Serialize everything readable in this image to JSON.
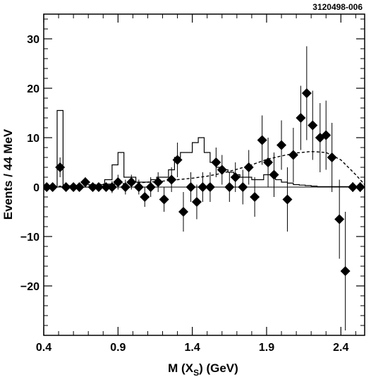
{
  "figure_id": "3120498-006",
  "chart_data": {
    "type": "scatter",
    "xlabel": "M (X",
    "xlabel_sub": "S",
    "xlabel_tail": ") (GeV)",
    "ylabel": "Events /  44  MeV",
    "xlim": [
      0.4,
      2.56
    ],
    "ylim": [
      -30,
      35
    ],
    "xticks": [
      0.4,
      0.9,
      1.4,
      1.9,
      2.4
    ],
    "xtick_labels": [
      "0.4",
      "0.9",
      "1.4",
      "1.9",
      "2.4"
    ],
    "yticks": [
      -20,
      -10,
      0,
      10,
      20,
      30
    ],
    "ytick_labels": [
      "−20",
      "−10",
      "0",
      "10",
      "20",
      "30"
    ],
    "grid": false,
    "series": [
      {
        "style": "markers-with-error-bars",
        "points": [
          {
            "x": 0.42,
            "y": 0.0,
            "err": 0.8
          },
          {
            "x": 0.46,
            "y": 0.0,
            "err": 0.8
          },
          {
            "x": 0.51,
            "y": 4.0,
            "err": 2.0
          },
          {
            "x": 0.55,
            "y": 0.0,
            "err": 0.8
          },
          {
            "x": 0.6,
            "y": 0.0,
            "err": 0.8
          },
          {
            "x": 0.64,
            "y": 0.0,
            "err": 0.8
          },
          {
            "x": 0.68,
            "y": 1.0,
            "err": 1.0
          },
          {
            "x": 0.73,
            "y": 0.0,
            "err": 0.8
          },
          {
            "x": 0.77,
            "y": 0.0,
            "err": 0.8
          },
          {
            "x": 0.82,
            "y": 0.0,
            "err": 0.8
          },
          {
            "x": 0.86,
            "y": 0.0,
            "err": 1.2
          },
          {
            "x": 0.9,
            "y": 1.0,
            "err": 1.5
          },
          {
            "x": 0.95,
            "y": 0.0,
            "err": 1.5
          },
          {
            "x": 0.99,
            "y": 1.0,
            "err": 1.5
          },
          {
            "x": 1.04,
            "y": 0.0,
            "err": 1.5
          },
          {
            "x": 1.08,
            "y": -2.0,
            "err": 2.0
          },
          {
            "x": 1.12,
            "y": 0.0,
            "err": 2.0
          },
          {
            "x": 1.17,
            "y": 1.0,
            "err": 2.0
          },
          {
            "x": 1.21,
            "y": -2.5,
            "err": 2.5
          },
          {
            "x": 1.26,
            "y": 1.5,
            "err": 2.5
          },
          {
            "x": 1.3,
            "y": 5.5,
            "err": 3.5
          },
          {
            "x": 1.34,
            "y": -5.0,
            "err": 4.0
          },
          {
            "x": 1.39,
            "y": 0.0,
            "err": 3.0
          },
          {
            "x": 1.43,
            "y": -3.0,
            "err": 3.5
          },
          {
            "x": 1.47,
            "y": 0.0,
            "err": 3.0
          },
          {
            "x": 1.52,
            "y": 0.0,
            "err": 3.0
          },
          {
            "x": 1.56,
            "y": 5.0,
            "err": 3.0
          },
          {
            "x": 1.6,
            "y": 3.5,
            "err": 3.0
          },
          {
            "x": 1.65,
            "y": 0.0,
            "err": 3.0
          },
          {
            "x": 1.69,
            "y": 2.0,
            "err": 3.0
          },
          {
            "x": 1.74,
            "y": 0.0,
            "err": 3.5
          },
          {
            "x": 1.78,
            "y": 4.0,
            "err": 3.5
          },
          {
            "x": 1.82,
            "y": -2.0,
            "err": 4.0
          },
          {
            "x": 1.87,
            "y": 9.5,
            "err": 5.0
          },
          {
            "x": 1.91,
            "y": 5.0,
            "err": 5.0
          },
          {
            "x": 1.95,
            "y": 2.5,
            "err": 4.5
          },
          {
            "x": 2.0,
            "y": 8.5,
            "err": 5.0
          },
          {
            "x": 2.04,
            "y": -2.5,
            "err": 6.5
          },
          {
            "x": 2.08,
            "y": 6.5,
            "err": 5.5
          },
          {
            "x": 2.13,
            "y": 14.0,
            "err": 6.5
          },
          {
            "x": 2.17,
            "y": 19.0,
            "err": 9.5
          },
          {
            "x": 2.21,
            "y": 12.5,
            "err": 7.0
          },
          {
            "x": 2.26,
            "y": 10.0,
            "err": 7.0
          },
          {
            "x": 2.3,
            "y": 10.5,
            "err": 7.0
          },
          {
            "x": 2.34,
            "y": 6.0,
            "err": 7.0
          },
          {
            "x": 2.39,
            "y": -6.5,
            "err": 8.0
          },
          {
            "x": 2.43,
            "y": -17.0,
            "err": 12.0
          },
          {
            "x": 2.48,
            "y": 0.0,
            "err": 1.0
          },
          {
            "x": 2.53,
            "y": 0.0,
            "err": 1.0
          }
        ]
      },
      {
        "style": "solid-histogram",
        "bin_edges": [
          0.4,
          0.49,
          0.53,
          0.76,
          0.81,
          0.86,
          0.9,
          0.94,
          1.02,
          1.12,
          1.16,
          1.2,
          1.24,
          1.28,
          1.32,
          1.36,
          1.4,
          1.44,
          1.48,
          1.52,
          1.56,
          1.6,
          1.64,
          1.68,
          1.72,
          1.76,
          1.8,
          1.84,
          1.88,
          1.96,
          2.0,
          2.04,
          2.08,
          2.12,
          2.16,
          2.2,
          2.24,
          2.56
        ],
        "values": [
          0.0,
          15.5,
          0.0,
          0.5,
          1.5,
          4.5,
          7.0,
          2.0,
          1.0,
          1.5,
          2.0,
          2.0,
          3.5,
          6.0,
          7.0,
          7.0,
          9.0,
          10.0,
          7.0,
          5.0,
          4.0,
          3.5,
          3.0,
          2.5,
          2.0,
          2.0,
          1.5,
          1.5,
          2.5,
          1.5,
          1.0,
          0.8,
          0.5,
          0.4,
          0.3,
          0.2,
          0.1
        ]
      },
      {
        "style": "dashed-curve",
        "x": [
          0.4,
          0.6,
          0.8,
          0.9,
          1.0,
          1.1,
          1.2,
          1.3,
          1.4,
          1.5,
          1.6,
          1.7,
          1.8,
          1.9,
          2.0,
          2.1,
          2.2,
          2.3,
          2.4,
          2.5,
          2.56
        ],
        "y": [
          0.0,
          0.3,
          0.6,
          0.6,
          0.8,
          1.0,
          1.2,
          1.5,
          1.8,
          2.2,
          2.8,
          3.6,
          4.5,
          5.6,
          6.3,
          6.9,
          7.2,
          7.0,
          5.5,
          2.5,
          0.5
        ]
      }
    ]
  }
}
